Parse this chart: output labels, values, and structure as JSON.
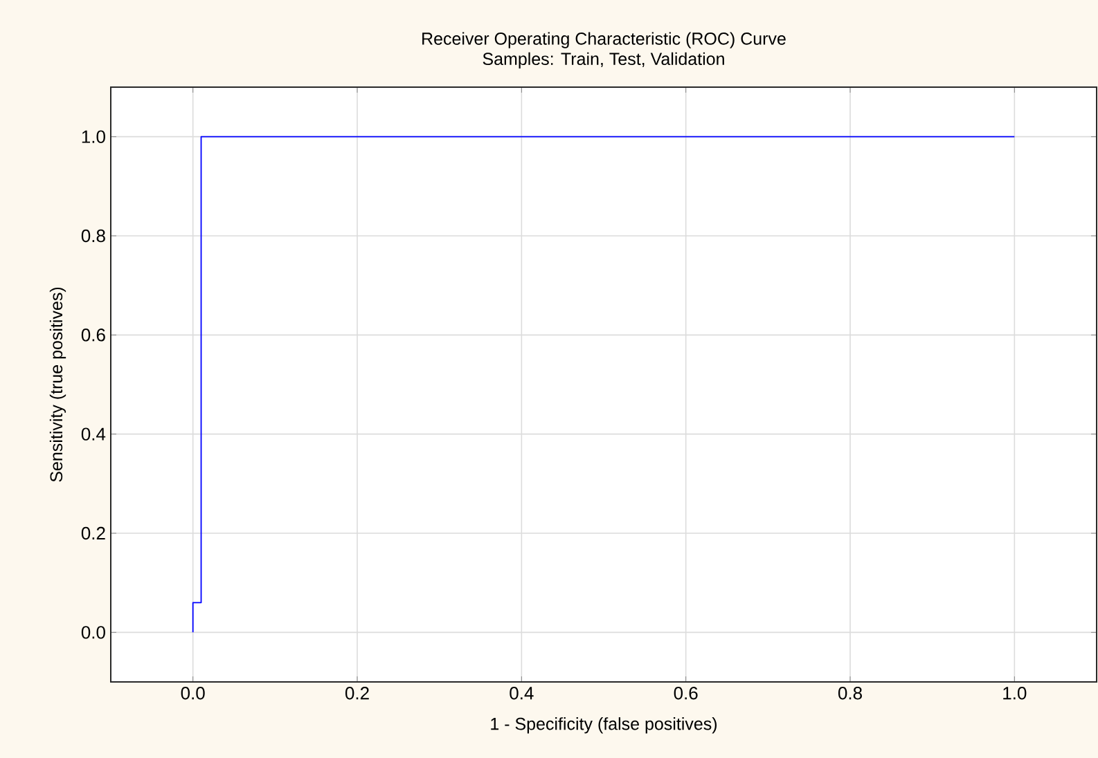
{
  "chart_data": {
    "type": "line",
    "title": "Receiver Operating Characteristic (ROC) Curve",
    "subtitle": "Samples: Train, Test, Validation",
    "xlabel": "1 - Specificity (false positives)",
    "ylabel": "Sensitivity (true positives)",
    "series": [
      {
        "color": "#0000ff",
        "x": [
          0,
          0,
          0.01,
          0.01,
          1
        ],
        "values": [
          0,
          0.06,
          0.06,
          1,
          1
        ]
      }
    ],
    "xlim": [
      -0.1,
      1.1
    ],
    "ylim": [
      -0.1,
      1.1
    ],
    "xticks": [
      {
        "value": 0,
        "label": "0.0"
      },
      {
        "value": 0.2,
        "label": "0.2"
      },
      {
        "value": 0.4,
        "label": "0.4"
      },
      {
        "value": 0.6,
        "label": "0.6"
      },
      {
        "value": 0.8,
        "label": "0.8"
      },
      {
        "value": 1,
        "label": "1.0"
      }
    ],
    "yticks": [
      {
        "value": 0,
        "label": "0.0"
      },
      {
        "value": 0.2,
        "label": "0.2"
      },
      {
        "value": 0.4,
        "label": "0.4"
      },
      {
        "value": 0.6,
        "label": "0.6"
      },
      {
        "value": 0.8,
        "label": "0.8"
      },
      {
        "value": 1,
        "label": "1.0"
      }
    ],
    "grid": true,
    "marker": "none",
    "line_style": "solid"
  }
}
